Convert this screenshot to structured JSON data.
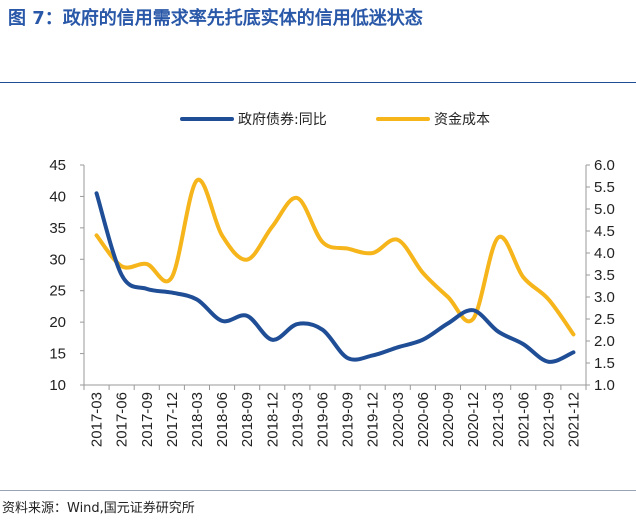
{
  "figure": {
    "title": "图 7：政府的信用需求率先托底实体的信用低迷状态",
    "source": "资料来源：Wind,国元证券研究所"
  },
  "colors": {
    "title": "#2a58a8",
    "series_blue": "#1f4e96",
    "series_yellow": "#f5b51b",
    "axis": "#9a9a9a",
    "text": "#222222"
  },
  "chart_data": {
    "type": "line",
    "title": "",
    "x": [
      "2017-03",
      "2017-06",
      "2017-09",
      "2017-12",
      "2018-03",
      "2018-06",
      "2018-09",
      "2018-12",
      "2019-03",
      "2019-06",
      "2019-09",
      "2019-12",
      "2020-03",
      "2020-06",
      "2020-09",
      "2020-12",
      "2021-03",
      "2021-06",
      "2021-09",
      "2021-12"
    ],
    "legend_position": "top",
    "grid": false,
    "y_left": {
      "ylim": [
        10,
        45
      ],
      "ticks": [
        "10",
        "15",
        "20",
        "25",
        "30",
        "35",
        "40",
        "45"
      ]
    },
    "y_right": {
      "ylim": [
        1.0,
        6.0
      ],
      "ticks": [
        "1.0",
        "1.5",
        "2.0",
        "2.5",
        "3.0",
        "3.5",
        "4.0",
        "4.5",
        "5.0",
        "5.5",
        "6.0"
      ]
    },
    "series": [
      {
        "name": "政府债券:同比",
        "axis": "left",
        "color": "#1f4e96",
        "values": [
          40.5,
          27.5,
          25.3,
          24.7,
          23.6,
          20.2,
          21.0,
          17.2,
          19.7,
          18.8,
          14.3,
          14.7,
          16.0,
          17.2,
          19.8,
          21.9,
          18.5,
          16.5,
          13.7,
          15.2
        ]
      },
      {
        "name": "资金成本",
        "axis": "right",
        "color": "#f5b51b",
        "values": [
          4.4,
          3.7,
          3.75,
          3.45,
          5.65,
          4.4,
          3.85,
          4.6,
          5.25,
          4.25,
          4.1,
          4.0,
          4.3,
          3.55,
          3.0,
          2.5,
          4.35,
          3.45,
          2.95,
          2.15
        ]
      }
    ]
  }
}
